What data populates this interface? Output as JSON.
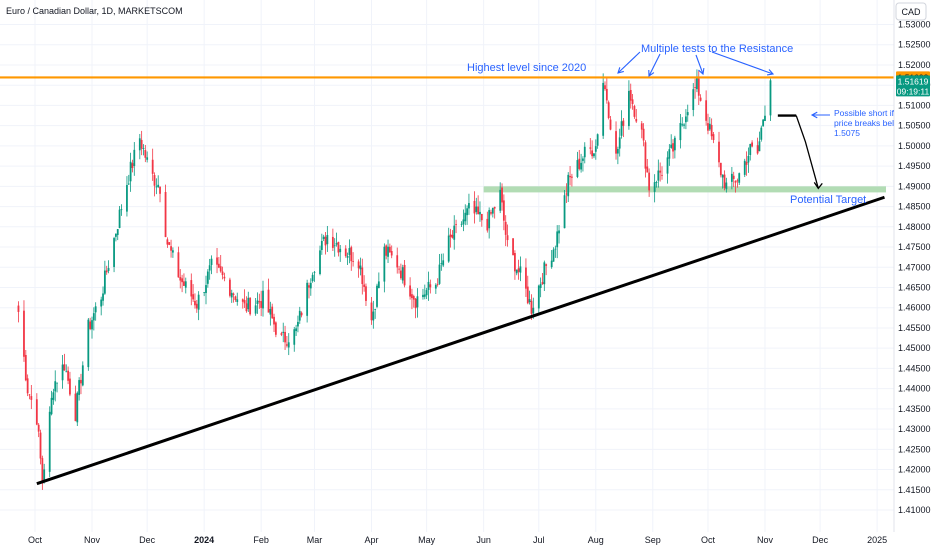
{
  "header": {
    "symbol_title": "Euro / Canadian Dollar, 1D, MARKETSCOM",
    "currency_button": "CAD"
  },
  "colors": {
    "up": "#089981",
    "down": "#f23645",
    "resistance": "#ff9800",
    "support_zone": "#a5d6a7",
    "annotation": "#2962ff",
    "trendline": "#000000"
  },
  "chart_data": {
    "type": "candlestick",
    "instrument": "EURCAD",
    "timeframe": "1D",
    "ylim": [
      1.405,
      1.535
    ],
    "y_ticks": [
      "1.53000",
      "1.52500",
      "1.52000",
      "1.51500",
      "1.51000",
      "1.50500",
      "1.50000",
      "1.49500",
      "1.49000",
      "1.48500",
      "1.48000",
      "1.47500",
      "1.47000",
      "1.46500",
      "1.46000",
      "1.45500",
      "1.45000",
      "1.44500",
      "1.44000",
      "1.43500",
      "1.43000",
      "1.42500",
      "1.42000",
      "1.41500",
      "1.41000"
    ],
    "x_ticks": [
      "Oct",
      "Nov",
      "Dec",
      "2024",
      "Feb",
      "Mar",
      "Apr",
      "May",
      "Jun",
      "Jul",
      "Aug",
      "Sep",
      "Oct",
      "Nov",
      "Dec",
      "2025"
    ],
    "price_path": [
      {
        "date": "2023-09-22",
        "close": 1.459
      },
      {
        "date": "2023-09-27",
        "close": 1.44
      },
      {
        "date": "2023-10-02",
        "close": 1.433
      },
      {
        "date": "2023-10-05",
        "close": 1.417
      },
      {
        "date": "2023-10-11",
        "close": 1.441
      },
      {
        "date": "2023-10-17",
        "close": 1.446
      },
      {
        "date": "2023-10-23",
        "close": 1.434
      },
      {
        "date": "2023-10-30",
        "close": 1.455
      },
      {
        "date": "2023-11-06",
        "close": 1.463
      },
      {
        "date": "2023-11-13",
        "close": 1.477
      },
      {
        "date": "2023-11-20",
        "close": 1.491
      },
      {
        "date": "2023-11-27",
        "close": 1.502
      },
      {
        "date": "2023-12-03",
        "close": 1.493
      },
      {
        "date": "2023-12-08",
        "close": 1.49
      },
      {
        "date": "2023-12-12",
        "close": 1.476
      },
      {
        "date": "2023-12-19",
        "close": 1.467
      },
      {
        "date": "2023-12-28",
        "close": 1.461
      },
      {
        "date": "2024-01-05",
        "close": 1.47
      },
      {
        "date": "2024-01-12",
        "close": 1.467
      },
      {
        "date": "2024-01-23",
        "close": 1.46
      },
      {
        "date": "2024-02-02",
        "close": 1.462
      },
      {
        "date": "2024-02-12",
        "close": 1.452
      },
      {
        "date": "2024-02-20",
        "close": 1.454
      },
      {
        "date": "2024-02-29",
        "close": 1.47
      },
      {
        "date": "2024-03-08",
        "close": 1.478
      },
      {
        "date": "2024-03-18",
        "close": 1.474
      },
      {
        "date": "2024-03-25",
        "close": 1.472
      },
      {
        "date": "2024-04-01",
        "close": 1.457
      },
      {
        "date": "2024-04-08",
        "close": 1.474
      },
      {
        "date": "2024-04-15",
        "close": 1.471
      },
      {
        "date": "2024-04-25",
        "close": 1.462
      },
      {
        "date": "2024-05-06",
        "close": 1.466
      },
      {
        "date": "2024-05-13",
        "close": 1.476
      },
      {
        "date": "2024-05-24",
        "close": 1.484
      },
      {
        "date": "2024-06-03",
        "close": 1.481
      },
      {
        "date": "2024-06-10",
        "close": 1.488
      },
      {
        "date": "2024-06-14",
        "close": 1.475
      },
      {
        "date": "2024-06-21",
        "close": 1.468
      },
      {
        "date": "2024-06-27",
        "close": 1.46
      },
      {
        "date": "2024-07-03",
        "close": 1.468
      },
      {
        "date": "2024-07-10",
        "close": 1.476
      },
      {
        "date": "2024-07-17",
        "close": 1.491
      },
      {
        "date": "2024-07-22",
        "close": 1.495
      },
      {
        "date": "2024-07-26",
        "close": 1.498
      },
      {
        "date": "2024-08-01",
        "close": 1.5
      },
      {
        "date": "2024-08-05",
        "close": 1.516
      },
      {
        "date": "2024-08-07",
        "close": 1.512
      },
      {
        "date": "2024-08-12",
        "close": 1.497
      },
      {
        "date": "2024-08-19",
        "close": 1.514
      },
      {
        "date": "2024-08-26",
        "close": 1.503
      },
      {
        "date": "2024-08-30",
        "close": 1.49
      },
      {
        "date": "2024-09-06",
        "close": 1.494
      },
      {
        "date": "2024-09-13",
        "close": 1.5
      },
      {
        "date": "2024-09-20",
        "close": 1.51
      },
      {
        "date": "2024-09-25",
        "close": 1.515
      },
      {
        "date": "2024-09-30",
        "close": 1.507
      },
      {
        "date": "2024-10-07",
        "close": 1.495
      },
      {
        "date": "2024-10-11",
        "close": 1.49
      },
      {
        "date": "2024-10-17",
        "close": 1.492
      },
      {
        "date": "2024-10-24",
        "close": 1.499
      },
      {
        "date": "2024-10-28",
        "close": 1.498
      },
      {
        "date": "2024-10-31",
        "close": 1.507
      },
      {
        "date": "2024-11-04",
        "close": 1.5162
      }
    ],
    "resistance_level": 1.51692,
    "support_zone": [
      1.4885,
      1.49
    ],
    "trendline": [
      {
        "date": "2023-10-02",
        "price": 1.4165
      },
      {
        "date": "2025-01-05",
        "price": 1.4873
      }
    ],
    "short_trigger_level": 1.5075,
    "projection_path": [
      {
        "date": "2024-11-08",
        "price": 1.5075
      },
      {
        "date": "2024-11-18",
        "price": 1.5075
      },
      {
        "date": "2024-11-23",
        "price": 1.501
      },
      {
        "date": "2024-11-30",
        "price": 1.4895
      }
    ],
    "last_price": "1.51619",
    "resistance_tag": "1.51692",
    "countdown": "09:19:11"
  },
  "annotations": {
    "highest_level": "Highest level since 2020",
    "multiple_tests": "Multiple tests to the Resistance",
    "possible_short_line1": "Possible short if",
    "possible_short_line2": "price breaks bel",
    "possible_short_line3": "1.5075",
    "potential_target": "Potential Target"
  }
}
